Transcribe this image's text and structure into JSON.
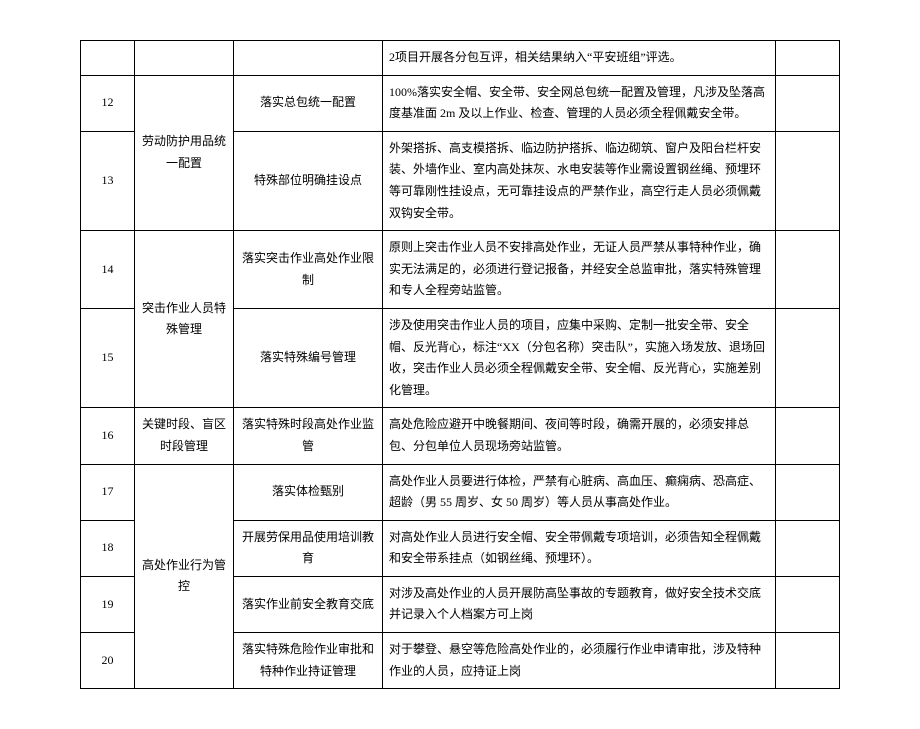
{
  "groups": [
    {
      "name": "",
      "rows": [
        {
          "idx": "",
          "item": "",
          "desc": "2项目开展各分包互评，相关结果纳入“平安班组”评选。"
        }
      ]
    },
    {
      "name": "劳动防护用品统一配置",
      "rows": [
        {
          "idx": "12",
          "item": "落实总包统一配置",
          "desc": "100%落实安全帽、安全带、安全网总包统一配置及管理，凡涉及坠落高度基准面 2m 及以上作业、检查、管理的人员必须全程佩戴安全带。"
        },
        {
          "idx": "13",
          "item": "特殊部位明确挂设点",
          "desc": "外架搭拆、高支模搭拆、临边防护搭拆、临边砌筑、窗户及阳台栏杆安装、外墙作业、室内高处抹灰、水电安装等作业需设置钢丝绳、预埋环等可靠刚性挂设点，无可靠挂设点的严禁作业，高空行走人员必须佩戴双钩安全带。"
        }
      ]
    },
    {
      "name": "突击作业人员特殊管理",
      "rows": [
        {
          "idx": "14",
          "item": "落实突击作业高处作业限制",
          "desc": "原则上突击作业人员不安排高处作业，无证人员严禁从事特种作业，确实无法满足的，必须进行登记报备，并经安全总监审批，落实特殊管理和专人全程旁站监管。"
        },
        {
          "idx": "15",
          "item": "落实特殊编号管理",
          "desc": "涉及使用突击作业人员的项目，应集中采购、定制一批安全带、安全帽、反光背心，标注“XX（分包名称）突击队”，实施入场发放、退场回收，突击作业人员必须全程佩戴安全带、安全帽、反光背心，实施差别化管理。"
        }
      ]
    },
    {
      "name": "关键时段、盲区时段管理",
      "rows": [
        {
          "idx": "16",
          "item": "落实特殊时段高处作业监管",
          "desc": "高处危险应避开中晚餐期间、夜间等时段，确需开展的，必须安排总包、分包单位人员现场旁站监管。"
        }
      ]
    },
    {
      "name": "高处作业行为管控",
      "rows": [
        {
          "idx": "17",
          "item": "落实体检甄别",
          "desc": "高处作业人员要进行体检，严禁有心脏病、高血压、癫痫病、恐高症、超龄（男 55 周岁、女 50 周岁）等人员从事高处作业。"
        },
        {
          "idx": "18",
          "item": "开展劳保用品使用培训教育",
          "desc": "对高处作业人员进行安全帽、安全带佩戴专项培训，必须告知全程佩戴和安全带系挂点（如钢丝绳、预埋环）。"
        },
        {
          "idx": "19",
          "item": "落实作业前安全教育交底",
          "desc": "对涉及高处作业的人员开展防高坠事故的专题教育，做好安全技术交底并记录入个人档案方可上岗"
        },
        {
          "idx": "20",
          "item": "落实特殊危险作业审批和特种作业持证管理",
          "desc": "对于攀登、悬空等危险高处作业的，必须履行作业申请审批，涉及特种作业的人员，应持证上岗"
        }
      ]
    }
  ]
}
